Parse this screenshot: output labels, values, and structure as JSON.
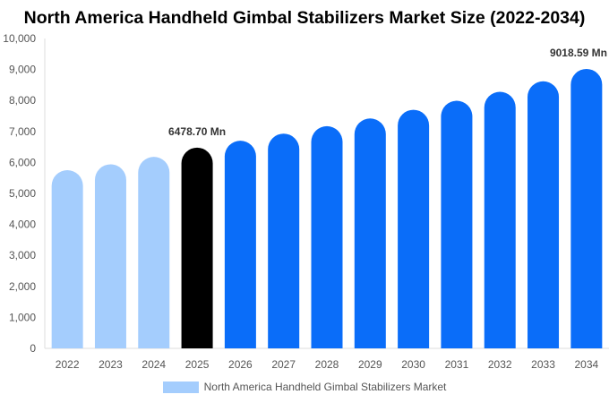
{
  "chart_data": {
    "type": "bar",
    "title": "North America Handheld Gimbal Stabilizers Market Size (2022-2034)",
    "categories": [
      "2022",
      "2023",
      "2024",
      "2025",
      "2026",
      "2027",
      "2028",
      "2029",
      "2030",
      "2031",
      "2032",
      "2033",
      "2034"
    ],
    "series": [
      {
        "name": "North America Handheld Gimbal Stabilizers Market",
        "values": [
          5750,
          5940,
          6180,
          6478.7,
          6700,
          6930,
          7170,
          7420,
          7700,
          7990,
          8280,
          8620,
          9018.59
        ]
      }
    ],
    "ylim": [
      0,
      10000
    ],
    "yticks": [
      "0",
      "1,000",
      "2,000",
      "3,000",
      "4,000",
      "5,000",
      "6,000",
      "7,000",
      "8,000",
      "9,000",
      "10,000"
    ],
    "bar_colors": {
      "history": "#a4cdfd",
      "base_year": "#000000",
      "forecast": "#0a6df9"
    },
    "bar_color_by_category": [
      "history",
      "history",
      "history",
      "base_year",
      "forecast",
      "forecast",
      "forecast",
      "forecast",
      "forecast",
      "forecast",
      "forecast",
      "forecast",
      "forecast"
    ],
    "annotations": [
      {
        "category": "2025",
        "text": "6478.70 Mn"
      },
      {
        "category": "2034",
        "text": "9018.59 Mn"
      }
    ],
    "legend_position": "bottom",
    "legend_color": "#a4cdfd",
    "grid": false
  }
}
